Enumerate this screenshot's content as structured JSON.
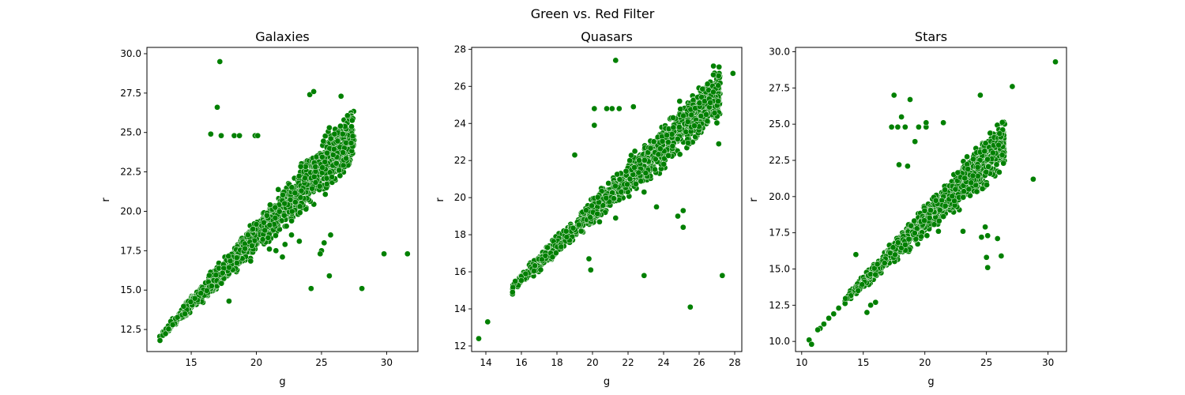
{
  "figure": {
    "suptitle": "Green vs. Red Filter"
  },
  "marker_color": "#008000",
  "marker_edge_color": "#ffffff",
  "chart_data": [
    {
      "type": "scatter",
      "title": "Galaxies",
      "xlabel": "g",
      "ylabel": "r",
      "xlim": [
        11.6,
        32.4
      ],
      "ylim": [
        11.1,
        30.4
      ],
      "xticks": [
        15,
        20,
        25,
        30
      ],
      "yticks": [
        12.5,
        15.0,
        17.5,
        20.0,
        22.5,
        25.0,
        27.5,
        30.0
      ],
      "trend": {
        "slope": 0.86,
        "intercept": 1.2,
        "x_range": [
          12.5,
          27.5
        ],
        "spread_low": 0.3,
        "spread_high": 2.6,
        "count": 1400
      },
      "points": [
        [
          12.6,
          11.8
        ],
        [
          17.2,
          29.5
        ],
        [
          17.0,
          26.6
        ],
        [
          16.5,
          24.9
        ],
        [
          17.3,
          24.8
        ],
        [
          18.3,
          24.8
        ],
        [
          18.7,
          24.8
        ],
        [
          19.9,
          24.8
        ],
        [
          20.1,
          24.8
        ],
        [
          24.1,
          27.4
        ],
        [
          24.4,
          27.6
        ],
        [
          26.5,
          27.3
        ],
        [
          25.6,
          25.3
        ],
        [
          29.8,
          17.3
        ],
        [
          31.6,
          17.3
        ],
        [
          28.1,
          15.1
        ],
        [
          24.2,
          15.1
        ],
        [
          25.6,
          15.9
        ],
        [
          17.9,
          14.3
        ],
        [
          25.2,
          18.0
        ],
        [
          25.0,
          17.5
        ],
        [
          24.9,
          17.3
        ],
        [
          25.7,
          18.5
        ],
        [
          23.3,
          18.1
        ],
        [
          22.7,
          18.5
        ],
        [
          21.0,
          17.6
        ],
        [
          22.0,
          17.1
        ],
        [
          21.5,
          17.5
        ],
        [
          22.2,
          17.9
        ]
      ]
    },
    {
      "type": "scatter",
      "title": "Quasars",
      "xlabel": "g",
      "ylabel": "r",
      "xlim": [
        13.2,
        28.4
      ],
      "ylim": [
        11.7,
        28.1
      ],
      "xticks": [
        14,
        16,
        18,
        20,
        22,
        24,
        26,
        28
      ],
      "yticks": [
        12,
        14,
        16,
        18,
        20,
        22,
        24,
        26,
        28
      ],
      "trend": {
        "slope": 0.9,
        "intercept": 1.2,
        "x_range": [
          15.5,
          27.2
        ],
        "spread_low": 0.35,
        "spread_high": 1.9,
        "count": 1400
      },
      "points": [
        [
          13.6,
          12.4
        ],
        [
          14.1,
          13.3
        ],
        [
          15.5,
          14.8
        ],
        [
          15.5,
          14.9
        ],
        [
          21.3,
          27.4
        ],
        [
          27.9,
          26.7
        ],
        [
          20.1,
          24.8
        ],
        [
          20.8,
          24.8
        ],
        [
          21.1,
          24.8
        ],
        [
          21.5,
          24.8
        ],
        [
          20.1,
          23.9
        ],
        [
          19.0,
          22.3
        ],
        [
          22.3,
          24.9
        ],
        [
          24.9,
          25.2
        ],
        [
          26.1,
          24.4
        ],
        [
          25.1,
          19.3
        ],
        [
          25.1,
          18.4
        ],
        [
          24.8,
          19.0
        ],
        [
          19.8,
          16.7
        ],
        [
          19.9,
          16.1
        ],
        [
          22.9,
          15.8
        ],
        [
          25.5,
          14.1
        ],
        [
          27.3,
          15.8
        ],
        [
          27.1,
          22.9
        ],
        [
          23.6,
          19.5
        ],
        [
          21.3,
          18.9
        ],
        [
          22.9,
          20.3
        ]
      ]
    },
    {
      "type": "scatter",
      "title": "Stars",
      "xlabel": "g",
      "ylabel": "r",
      "xlim": [
        9.5,
        31.5
      ],
      "ylim": [
        9.3,
        30.3
      ],
      "xticks": [
        10,
        15,
        20,
        25,
        30
      ],
      "yticks": [
        10.0,
        12.5,
        15.0,
        17.5,
        20.0,
        22.5,
        25.0,
        27.5,
        30.0
      ],
      "trend": {
        "slope": 0.84,
        "intercept": 1.5,
        "x_range": [
          13.5,
          26.5
        ],
        "spread_low": 0.35,
        "spread_high": 2.4,
        "count": 1100
      },
      "points": [
        [
          10.6,
          10.1
        ],
        [
          10.8,
          9.8
        ],
        [
          11.5,
          10.9
        ],
        [
          11.8,
          11.2
        ],
        [
          12.2,
          11.6
        ],
        [
          12.6,
          11.9
        ],
        [
          13.0,
          12.3
        ],
        [
          11.3,
          10.8
        ],
        [
          17.5,
          27.0
        ],
        [
          18.8,
          26.7
        ],
        [
          24.5,
          27.0
        ],
        [
          27.1,
          27.6
        ],
        [
          30.6,
          29.3
        ],
        [
          28.8,
          21.2
        ],
        [
          26.2,
          15.9
        ],
        [
          25.0,
          15.8
        ],
        [
          25.1,
          15.1
        ],
        [
          25.9,
          17.1
        ],
        [
          25.1,
          17.3
        ],
        [
          24.9,
          17.9
        ],
        [
          24.6,
          17.2
        ],
        [
          23.1,
          17.6
        ],
        [
          21.1,
          17.6
        ],
        [
          15.3,
          12.0
        ],
        [
          15.6,
          12.5
        ],
        [
          16.0,
          12.7
        ],
        [
          14.4,
          16.0
        ],
        [
          17.3,
          24.8
        ],
        [
          17.8,
          24.8
        ],
        [
          18.4,
          24.8
        ],
        [
          18.1,
          25.5
        ],
        [
          19.5,
          24.8
        ],
        [
          20.1,
          24.8
        ],
        [
          17.9,
          22.2
        ],
        [
          18.6,
          22.1
        ],
        [
          19.2,
          23.8
        ],
        [
          20.1,
          25.1
        ],
        [
          21.5,
          25.1
        ]
      ]
    }
  ]
}
